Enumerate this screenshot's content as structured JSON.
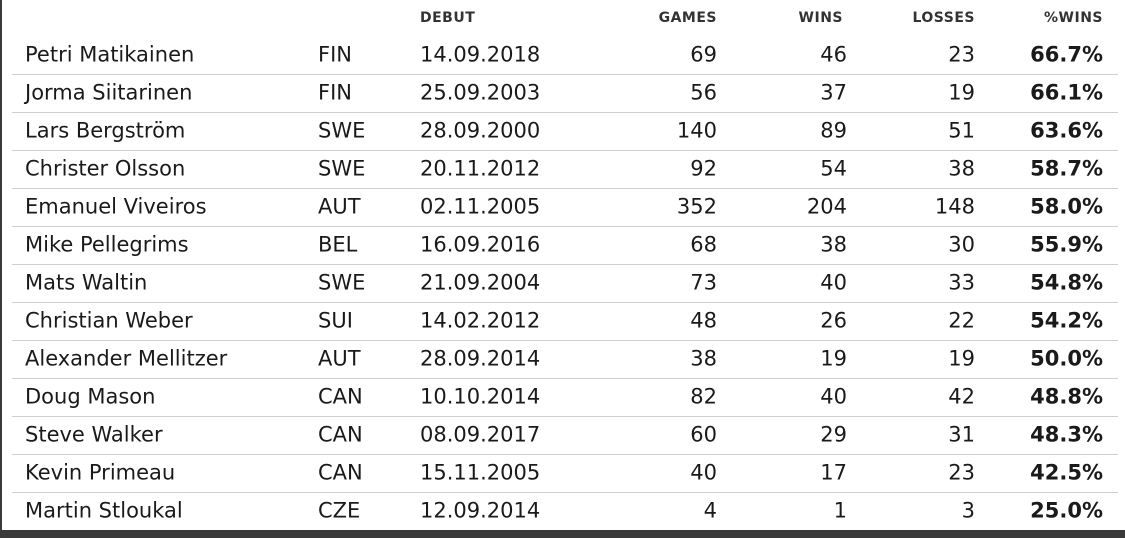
{
  "table": {
    "columns": [
      "",
      "",
      "DEBUT",
      "GAMES",
      "WINS",
      "LOSSES",
      "%WINS"
    ],
    "rows": [
      [
        "Petri Matikainen",
        "FIN",
        "14.09.2018",
        69,
        46,
        23,
        "66.7%"
      ],
      [
        "Jorma Siitarinen",
        "FIN",
        "25.09.2003",
        56,
        37,
        19,
        "66.1%"
      ],
      [
        "Lars Bergström",
        "SWE",
        "28.09.2000",
        140,
        89,
        51,
        "63.6%"
      ],
      [
        "Christer Olsson",
        "SWE",
        "20.11.2012",
        92,
        54,
        38,
        "58.7%"
      ],
      [
        "Emanuel Viveiros",
        "AUT",
        "02.11.2005",
        352,
        204,
        148,
        "58.0%"
      ],
      [
        "Mike Pellegrims",
        "BEL",
        "16.09.2016",
        68,
        38,
        30,
        "55.9%"
      ],
      [
        "Mats Waltin",
        "SWE",
        "21.09.2004",
        73,
        40,
        33,
        "54.8%"
      ],
      [
        "Christian Weber",
        "SUI",
        "14.02.2012",
        48,
        26,
        22,
        "54.2%"
      ],
      [
        "Alexander Mellitzer",
        "AUT",
        "28.09.2014",
        38,
        19,
        19,
        "50.0%"
      ],
      [
        "Doug Mason",
        "CAN",
        "10.10.2014",
        82,
        40,
        42,
        "48.8%"
      ],
      [
        "Steve Walker",
        "CAN",
        "08.09.2017",
        60,
        29,
        31,
        "48.3%"
      ],
      [
        "Kevin Primeau",
        "CAN",
        "15.11.2005",
        40,
        17,
        23,
        "42.5%"
      ],
      [
        "Martin Stloukal",
        "CZE",
        "12.09.2014",
        4,
        1,
        3,
        "25.0%"
      ]
    ]
  }
}
